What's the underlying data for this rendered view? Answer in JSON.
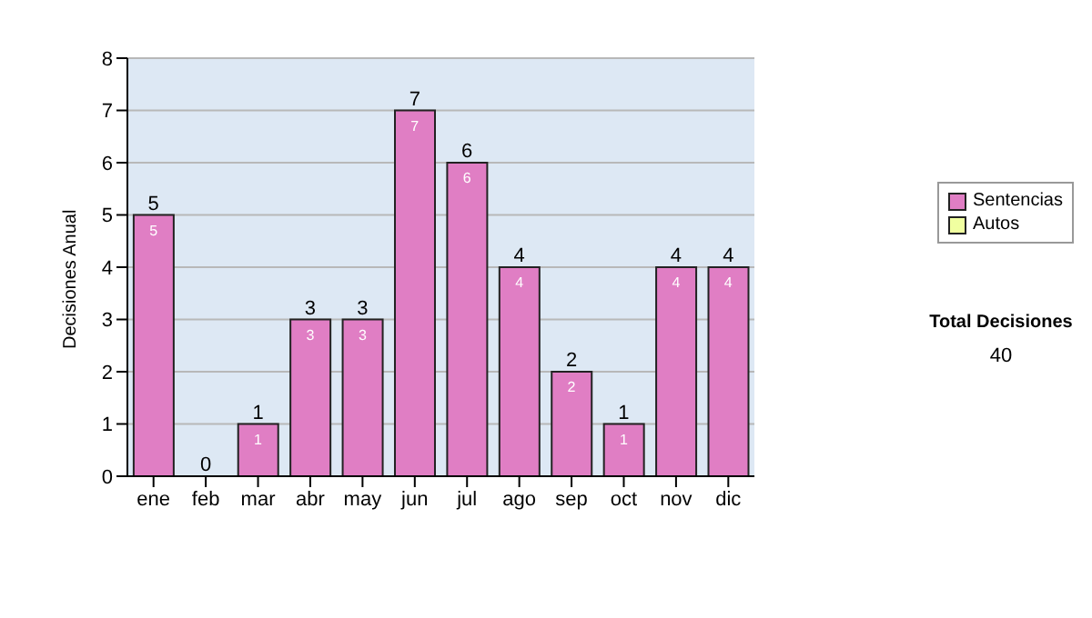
{
  "chart_data": {
    "type": "bar",
    "ylabel": "Decisiones Anual",
    "categories": [
      "ene",
      "feb",
      "mar",
      "abr",
      "may",
      "jun",
      "jul",
      "ago",
      "sep",
      "oct",
      "nov",
      "dic"
    ],
    "series": [
      {
        "name": "Sentencias",
        "color": "#e07ec4",
        "values": [
          5,
          0,
          1,
          3,
          3,
          7,
          6,
          4,
          2,
          1,
          4,
          4
        ],
        "value_labels": [
          "5",
          null,
          "1",
          "3",
          "3",
          "7",
          "6",
          "4",
          "2",
          "1",
          "4",
          "4"
        ]
      },
      {
        "name": "Autos",
        "color": "#f0ffa0",
        "values": [
          0,
          0,
          0,
          0,
          0,
          0,
          0,
          0,
          0,
          0,
          0,
          0
        ]
      }
    ],
    "stacked": true,
    "totals": [
      "5",
      "0",
      "1",
      "3",
      "3",
      "7",
      "6",
      "4",
      "2",
      "1",
      "4",
      "4"
    ],
    "ylim": [
      0,
      8
    ],
    "yticks": [
      0,
      1,
      2,
      3,
      4,
      5,
      6,
      7,
      8
    ],
    "grid": "y",
    "legend": "right",
    "annotations": [
      "Total Decisiones",
      "40"
    ]
  }
}
